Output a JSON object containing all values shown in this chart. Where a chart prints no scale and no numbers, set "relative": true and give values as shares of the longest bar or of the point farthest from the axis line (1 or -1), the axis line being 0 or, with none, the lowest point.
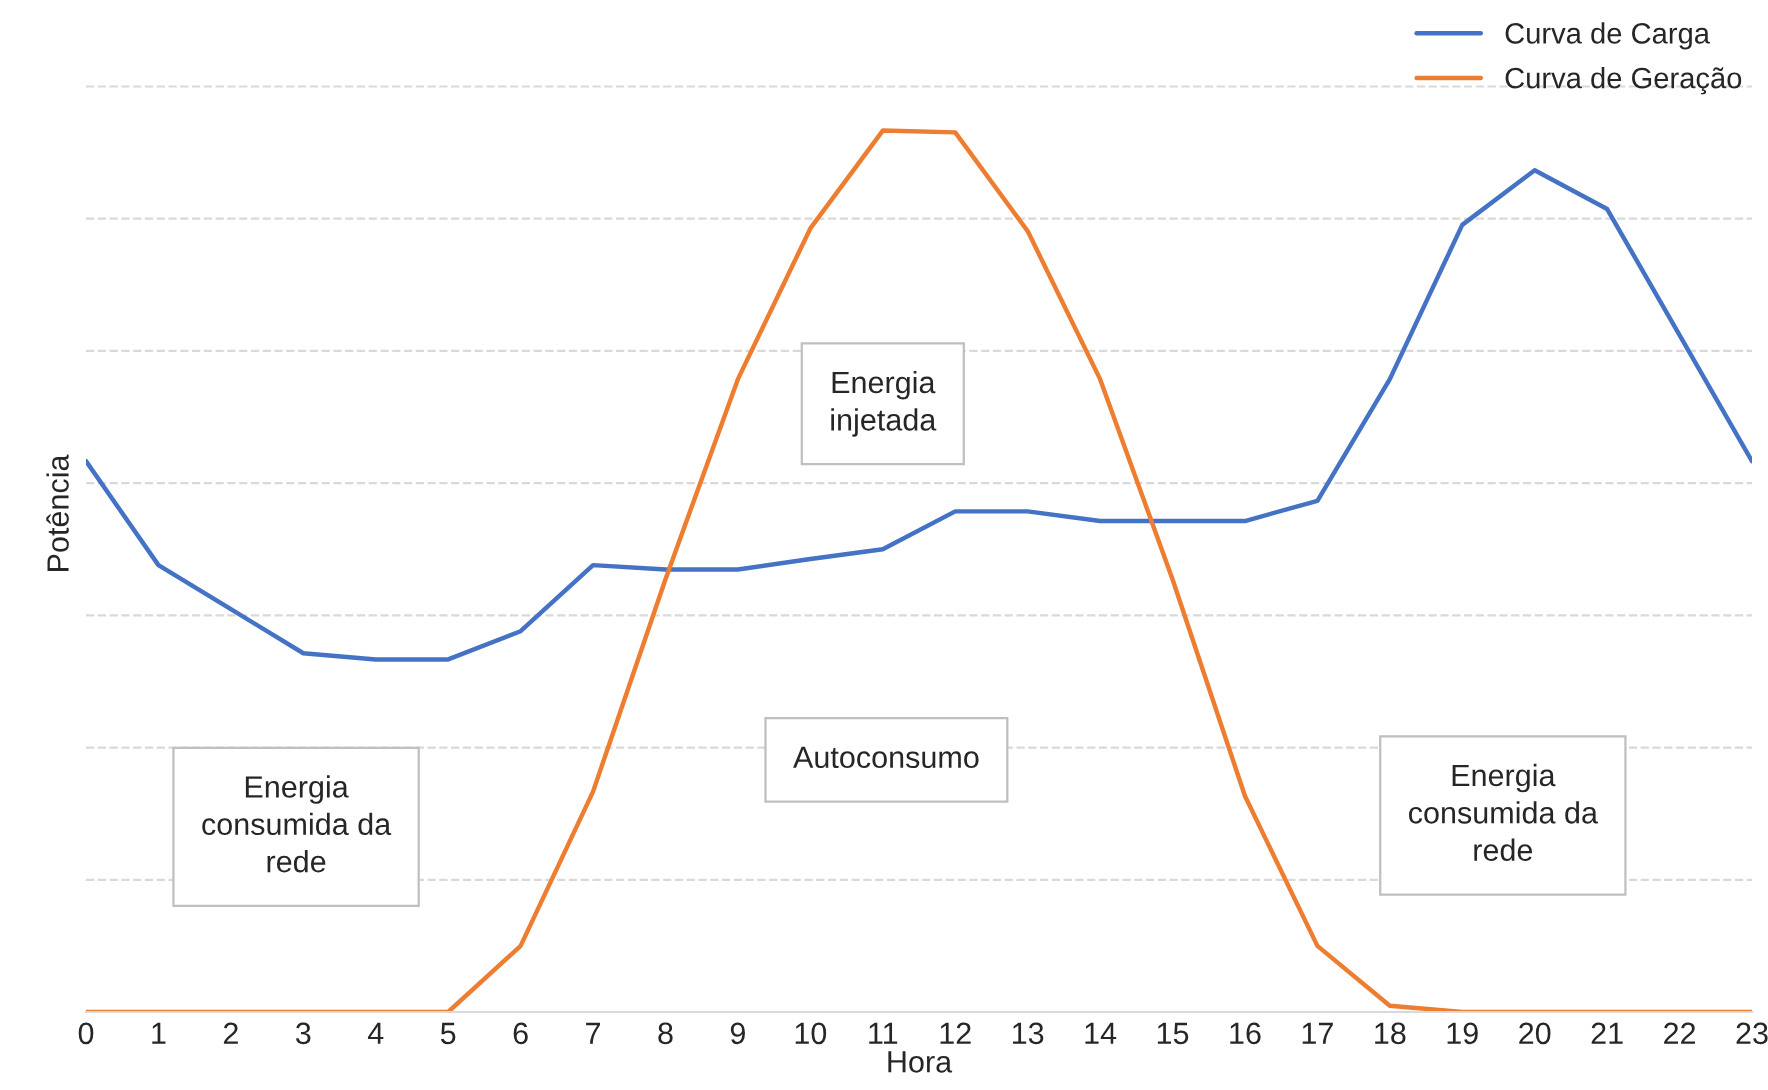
{
  "chart_data": {
    "type": "line",
    "relative": true,
    "xlabel": "Hora",
    "ylabel": "Potência",
    "categories": [
      "0",
      "1",
      "2",
      "3",
      "4",
      "5",
      "6",
      "7",
      "8",
      "9",
      "10",
      "11",
      "12",
      "13",
      "14",
      "15",
      "16",
      "17",
      "18",
      "19",
      "20",
      "21",
      "22",
      "23"
    ],
    "series": [
      {
        "name": "Curva de Carga",
        "color": "#4472c4",
        "values": [
          0.625,
          0.507,
          0.457,
          0.407,
          0.4,
          0.4,
          0.432,
          0.507,
          0.502,
          0.502,
          0.514,
          0.525,
          0.568,
          0.568,
          0.557,
          0.557,
          0.557,
          0.58,
          0.718,
          0.893,
          0.955,
          0.911,
          0.768,
          0.625
        ]
      },
      {
        "name": "Curva de Geração",
        "color": "#ed7d31",
        "values": [
          0,
          0,
          0,
          0,
          0,
          0,
          0.075,
          0.25,
          0.491,
          0.718,
          0.889,
          1,
          0.998,
          0.886,
          0.718,
          0.491,
          0.245,
          0.075,
          0.007,
          0,
          0,
          0,
          0,
          0
        ]
      }
    ],
    "annotations": [
      "Energia\ninjetada",
      "Autoconsumo",
      "Energia\nconsumida da\nrede",
      "Energia\nconsumida da\nrede"
    ],
    "grid": "y",
    "legend": "top right",
    "marker": "none",
    "line_style": "solid"
  }
}
